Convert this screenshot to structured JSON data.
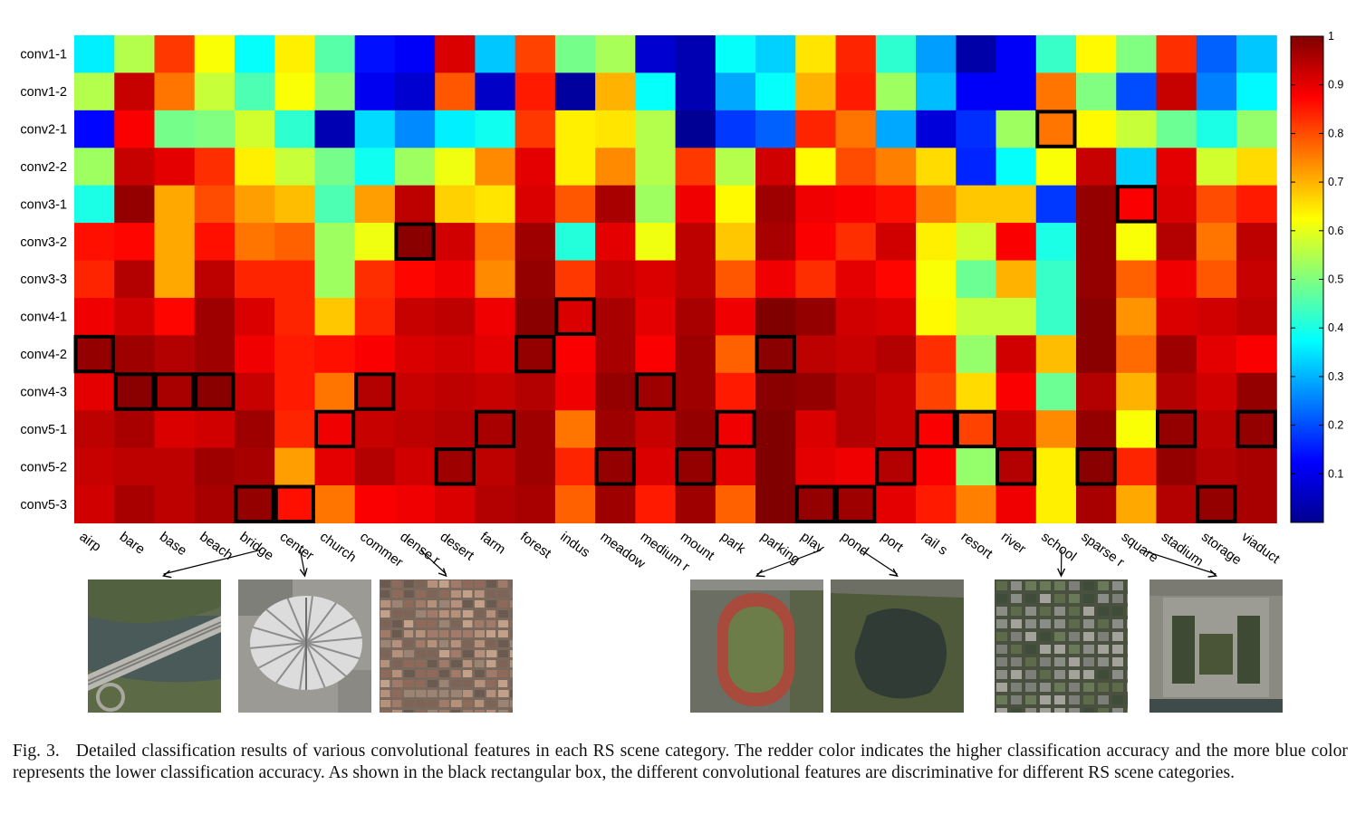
{
  "chart_data": {
    "type": "heatmap",
    "rows": [
      "conv1-1",
      "conv1-2",
      "conv2-1",
      "conv2-2",
      "conv3-1",
      "conv3-2",
      "conv3-3",
      "conv4-1",
      "conv4-2",
      "conv4-3",
      "conv5-1",
      "conv5-2",
      "conv5-3"
    ],
    "columns": [
      "airp",
      "bare",
      "base",
      "beach",
      "bridge",
      "center",
      "church",
      "commer",
      "dense r",
      "desert",
      "farm",
      "forest",
      "indus",
      "meadow",
      "medium r",
      "mount",
      "park",
      "parking",
      "play",
      "pond",
      "port",
      "rail s",
      "resort",
      "river",
      "school",
      "sparse r",
      "square",
      "stadium",
      "storage",
      "viaduct"
    ],
    "values": [
      [
        0.36,
        0.55,
        0.82,
        0.62,
        0.38,
        0.64,
        0.46,
        0.14,
        0.12,
        0.91,
        0.32,
        0.81,
        0.49,
        0.54,
        0.08,
        0.05,
        0.38,
        0.33,
        0.65,
        0.84,
        0.42,
        0.28,
        0.04,
        0.12,
        0.43,
        0.63,
        0.5,
        0.83,
        0.22,
        0.32
      ],
      [
        0.55,
        0.93,
        0.76,
        0.57,
        0.45,
        0.62,
        0.51,
        0.11,
        0.08,
        0.79,
        0.07,
        0.85,
        0.03,
        0.7,
        0.38,
        0.05,
        0.29,
        0.38,
        0.7,
        0.85,
        0.53,
        0.31,
        0.12,
        0.12,
        0.76,
        0.5,
        0.2,
        0.93,
        0.25,
        0.37
      ],
      [
        0.13,
        0.88,
        0.49,
        0.5,
        0.58,
        0.42,
        0.05,
        0.34,
        0.26,
        0.36,
        0.39,
        0.82,
        0.64,
        0.65,
        0.55,
        0.02,
        0.18,
        0.22,
        0.84,
        0.76,
        0.29,
        0.09,
        0.17,
        0.53,
        0.76,
        0.63,
        0.57,
        0.48,
        0.4,
        0.52
      ],
      [
        0.53,
        0.93,
        0.9,
        0.83,
        0.64,
        0.57,
        0.49,
        0.39,
        0.53,
        0.61,
        0.74,
        0.9,
        0.64,
        0.74,
        0.55,
        0.82,
        0.55,
        0.92,
        0.63,
        0.8,
        0.75,
        0.66,
        0.16,
        0.38,
        0.62,
        0.93,
        0.33,
        0.9,
        0.58,
        0.66
      ],
      [
        0.4,
        0.98,
        0.71,
        0.8,
        0.72,
        0.69,
        0.45,
        0.72,
        0.94,
        0.67,
        0.65,
        0.91,
        0.79,
        0.96,
        0.53,
        0.89,
        0.63,
        0.97,
        0.89,
        0.88,
        0.86,
        0.75,
        0.68,
        0.68,
        0.18,
        0.98,
        0.88,
        0.91,
        0.8,
        0.85
      ],
      [
        0.86,
        0.87,
        0.71,
        0.86,
        0.76,
        0.78,
        0.53,
        0.61,
        0.99,
        0.92,
        0.76,
        0.97,
        0.41,
        0.9,
        0.61,
        0.94,
        0.68,
        0.96,
        0.88,
        0.83,
        0.92,
        0.64,
        0.58,
        0.88,
        0.4,
        0.98,
        0.62,
        0.95,
        0.76,
        0.94
      ],
      [
        0.84,
        0.95,
        0.71,
        0.94,
        0.84,
        0.84,
        0.53,
        0.83,
        0.87,
        0.89,
        0.74,
        0.98,
        0.82,
        0.93,
        0.91,
        0.94,
        0.79,
        0.89,
        0.83,
        0.9,
        0.87,
        0.62,
        0.48,
        0.7,
        0.43,
        0.98,
        0.78,
        0.89,
        0.79,
        0.93
      ],
      [
        0.89,
        0.92,
        0.87,
        0.97,
        0.91,
        0.84,
        0.68,
        0.84,
        0.93,
        0.94,
        0.89,
        0.99,
        0.91,
        0.96,
        0.9,
        0.96,
        0.89,
        1.0,
        0.98,
        0.92,
        0.91,
        0.63,
        0.57,
        0.57,
        0.43,
        0.99,
        0.73,
        0.91,
        0.92,
        0.94
      ],
      [
        0.98,
        0.97,
        0.95,
        0.97,
        0.89,
        0.85,
        0.86,
        0.88,
        0.91,
        0.92,
        0.9,
        0.98,
        0.88,
        0.96,
        0.88,
        0.97,
        0.78,
        0.99,
        0.94,
        0.93,
        0.95,
        0.83,
        0.52,
        0.92,
        0.69,
        0.99,
        0.77,
        0.97,
        0.9,
        0.88
      ],
      [
        0.9,
        0.99,
        0.96,
        0.99,
        0.93,
        0.85,
        0.76,
        0.95,
        0.93,
        0.94,
        0.93,
        0.95,
        0.89,
        0.98,
        0.97,
        0.97,
        0.85,
        0.99,
        0.98,
        0.95,
        0.93,
        0.81,
        0.66,
        0.88,
        0.48,
        0.95,
        0.7,
        0.95,
        0.92,
        0.98
      ],
      [
        0.94,
        0.96,
        0.91,
        0.92,
        0.97,
        0.84,
        0.89,
        0.93,
        0.94,
        0.95,
        0.96,
        0.97,
        0.76,
        0.97,
        0.93,
        0.98,
        0.89,
        1.0,
        0.91,
        0.95,
        0.93,
        0.88,
        0.81,
        0.93,
        0.74,
        0.98,
        0.62,
        0.98,
        0.94,
        0.98
      ],
      [
        0.93,
        0.94,
        0.94,
        0.97,
        0.96,
        0.72,
        0.9,
        0.95,
        0.92,
        0.97,
        0.94,
        0.97,
        0.84,
        0.98,
        0.91,
        0.98,
        0.9,
        1.0,
        0.9,
        0.89,
        0.95,
        0.88,
        0.52,
        0.95,
        0.64,
        0.99,
        0.84,
        0.98,
        0.95,
        0.96
      ],
      [
        0.92,
        0.96,
        0.94,
        0.96,
        0.98,
        0.86,
        0.76,
        0.88,
        0.89,
        0.91,
        0.95,
        0.96,
        0.78,
        0.97,
        0.85,
        0.97,
        0.78,
        1.0,
        0.98,
        0.97,
        0.9,
        0.85,
        0.75,
        0.89,
        0.64,
        0.96,
        0.71,
        0.95,
        0.98,
        0.96
      ]
    ],
    "highlights": [
      [
        2,
        24
      ],
      [
        4,
        26
      ],
      [
        5,
        8
      ],
      [
        7,
        12
      ],
      [
        8,
        0
      ],
      [
        8,
        11
      ],
      [
        8,
        17
      ],
      [
        9,
        1
      ],
      [
        9,
        2
      ],
      [
        9,
        3
      ],
      [
        9,
        7
      ],
      [
        9,
        14
      ],
      [
        10,
        6
      ],
      [
        10,
        10
      ],
      [
        10,
        16
      ],
      [
        10,
        21
      ],
      [
        10,
        22
      ],
      [
        10,
        27
      ],
      [
        10,
        29
      ],
      [
        11,
        9
      ],
      [
        11,
        13
      ],
      [
        11,
        15
      ],
      [
        11,
        20
      ],
      [
        11,
        23
      ],
      [
        11,
        25
      ],
      [
        12,
        4
      ],
      [
        12,
        5
      ],
      [
        12,
        18
      ],
      [
        12,
        19
      ],
      [
        12,
        28
      ]
    ],
    "colorbar": {
      "min": 0,
      "max": 1,
      "ticks": [
        "0.1",
        "0.2",
        "0.3",
        "0.4",
        "0.5",
        "0.6",
        "0.7",
        "0.8",
        "0.9",
        "1"
      ],
      "colormap": "jet"
    }
  },
  "thumbnails": [
    {
      "name": "bridge",
      "column": 4,
      "slot": 0
    },
    {
      "name": "center",
      "column": 5,
      "slot": 1
    },
    {
      "name": "dense r",
      "column": 8,
      "slot": 2
    },
    {
      "name": "play",
      "column": 18,
      "slot": 3
    },
    {
      "name": "pond",
      "column": 19,
      "slot": 4
    },
    {
      "name": "school",
      "column": 24,
      "slot": 5
    },
    {
      "name": "square",
      "column": 26,
      "slot": 6
    }
  ],
  "caption": {
    "label": "Fig. 3.",
    "text": "Detailed classification results of various convolutional features in each RS scene category. The redder color indicates the higher classification accuracy and the more blue color represents the lower classification accuracy. As shown in the black rectangular box, the different convolutional features are discriminative for different RS scene categories."
  }
}
